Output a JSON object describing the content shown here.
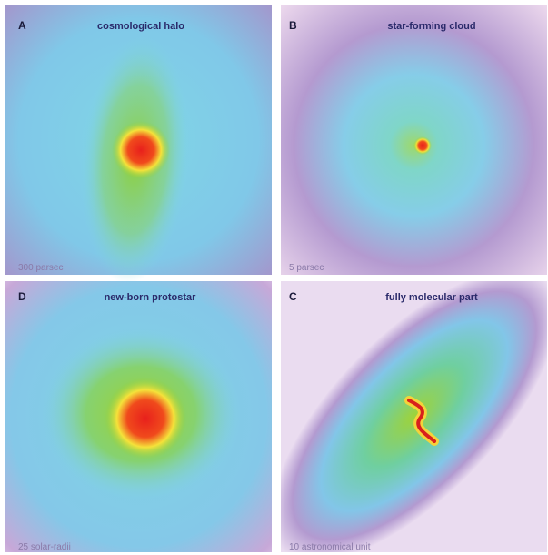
{
  "panels": [
    {
      "letter": "A",
      "title": "cosmological halo",
      "scale": "300 parsec"
    },
    {
      "letter": "B",
      "title": "star-forming cloud",
      "scale": "5 parsec"
    },
    {
      "letter": "D",
      "title": "new-born protostar",
      "scale": "25 solar-radii"
    },
    {
      "letter": "C",
      "title": "fully molecular part",
      "scale": "10 astronomical unit"
    }
  ]
}
